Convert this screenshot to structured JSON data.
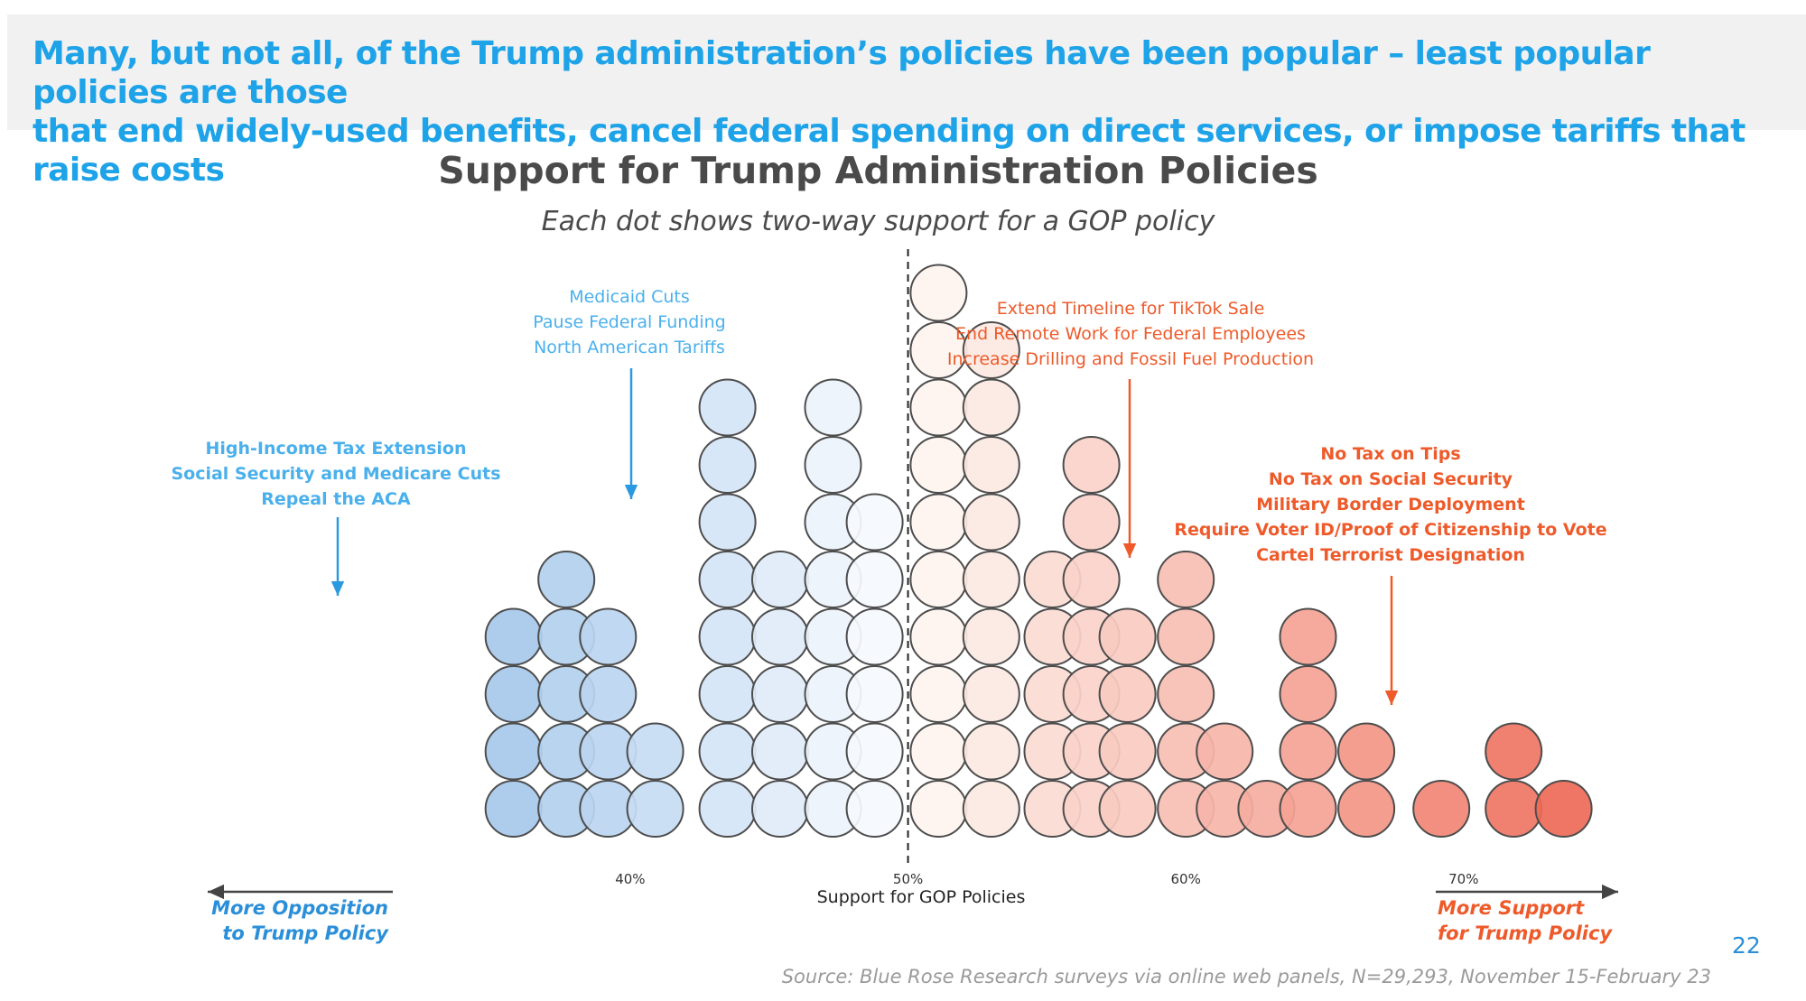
{
  "banner": {
    "line1": "Many, but not all, of the Trump administration’s policies have been popular – least popular policies are those",
    "line2": "that end widely-used benefits, cancel federal spending on direct services, or impose tariffs that raise costs"
  },
  "page_number": "22",
  "source": "Source: Blue Rose Research surveys via online web panels, N=29,293, November 15-February 23",
  "annotations": {
    "left_blue": [
      "High-Income Tax Extension",
      "Social Security and Medicare Cuts",
      "Repeal the ACA"
    ],
    "mid_blue": [
      "Medicaid Cuts",
      "Pause Federal Funding",
      "North American Tariffs"
    ],
    "mid_red": [
      "Extend Timeline for TikTok Sale",
      "End Remote Work for Federal Employees",
      "Increase Drilling and Fossil Fuel Production"
    ],
    "right_red": [
      "No Tax on Tips",
      "No Tax on Social Security",
      "Military Border Deployment",
      "Require Voter ID/Proof of Citizenship to Vote",
      "Cartel Terrorist Designation"
    ]
  },
  "side_labels": {
    "left": [
      "More Opposition",
      "to Trump Policy"
    ],
    "right": [
      "More Support",
      "for Trump Policy"
    ]
  },
  "colors": {
    "blue_dark": "#a7c9ec",
    "blue_light": "#f6f9fd",
    "red_light": "#fef8f3",
    "red_dark": "#ee6a57",
    "banner_text": "#1ea3e8",
    "annotation_blue": "#4ab0ec",
    "annotation_red": "#ee5a2a"
  },
  "chart_data": {
    "type": "scatter",
    "title": "Support for Trump Administration Policies",
    "subtitle": "Each dot shows two-way support for a GOP policy",
    "xlabel": "Support for GOP Policies",
    "ylabel": "",
    "x_ticks": [
      "40%",
      "50%",
      "60%",
      "70%"
    ],
    "x_tick_values": [
      40,
      50,
      60,
      70
    ],
    "xlim": [
      29.6,
      75.5
    ],
    "reference_line": 50,
    "stacks": [
      {
        "x": 35.8,
        "count": 4
      },
      {
        "x": 37.7,
        "count": 5
      },
      {
        "x": 39.2,
        "count": 4
      },
      {
        "x": 40.9,
        "count": 2
      },
      {
        "x": 43.5,
        "count": 8
      },
      {
        "x": 45.4,
        "count": 5
      },
      {
        "x": 47.3,
        "count": 8
      },
      {
        "x": 48.8,
        "count": 6
      },
      {
        "x": 51.1,
        "count": 10
      },
      {
        "x": 53.0,
        "count": 9
      },
      {
        "x": 55.2,
        "count": 5
      },
      {
        "x": 56.6,
        "count": 7
      },
      {
        "x": 57.9,
        "count": 4
      },
      {
        "x": 60.0,
        "count": 5
      },
      {
        "x": 61.4,
        "count": 2
      },
      {
        "x": 62.9,
        "count": 1
      },
      {
        "x": 64.4,
        "count": 4
      },
      {
        "x": 66.5,
        "count": 2
      },
      {
        "x": 69.2,
        "count": 1
      },
      {
        "x": 71.8,
        "count": 2
      },
      {
        "x": 73.6,
        "count": 1
      }
    ]
  }
}
